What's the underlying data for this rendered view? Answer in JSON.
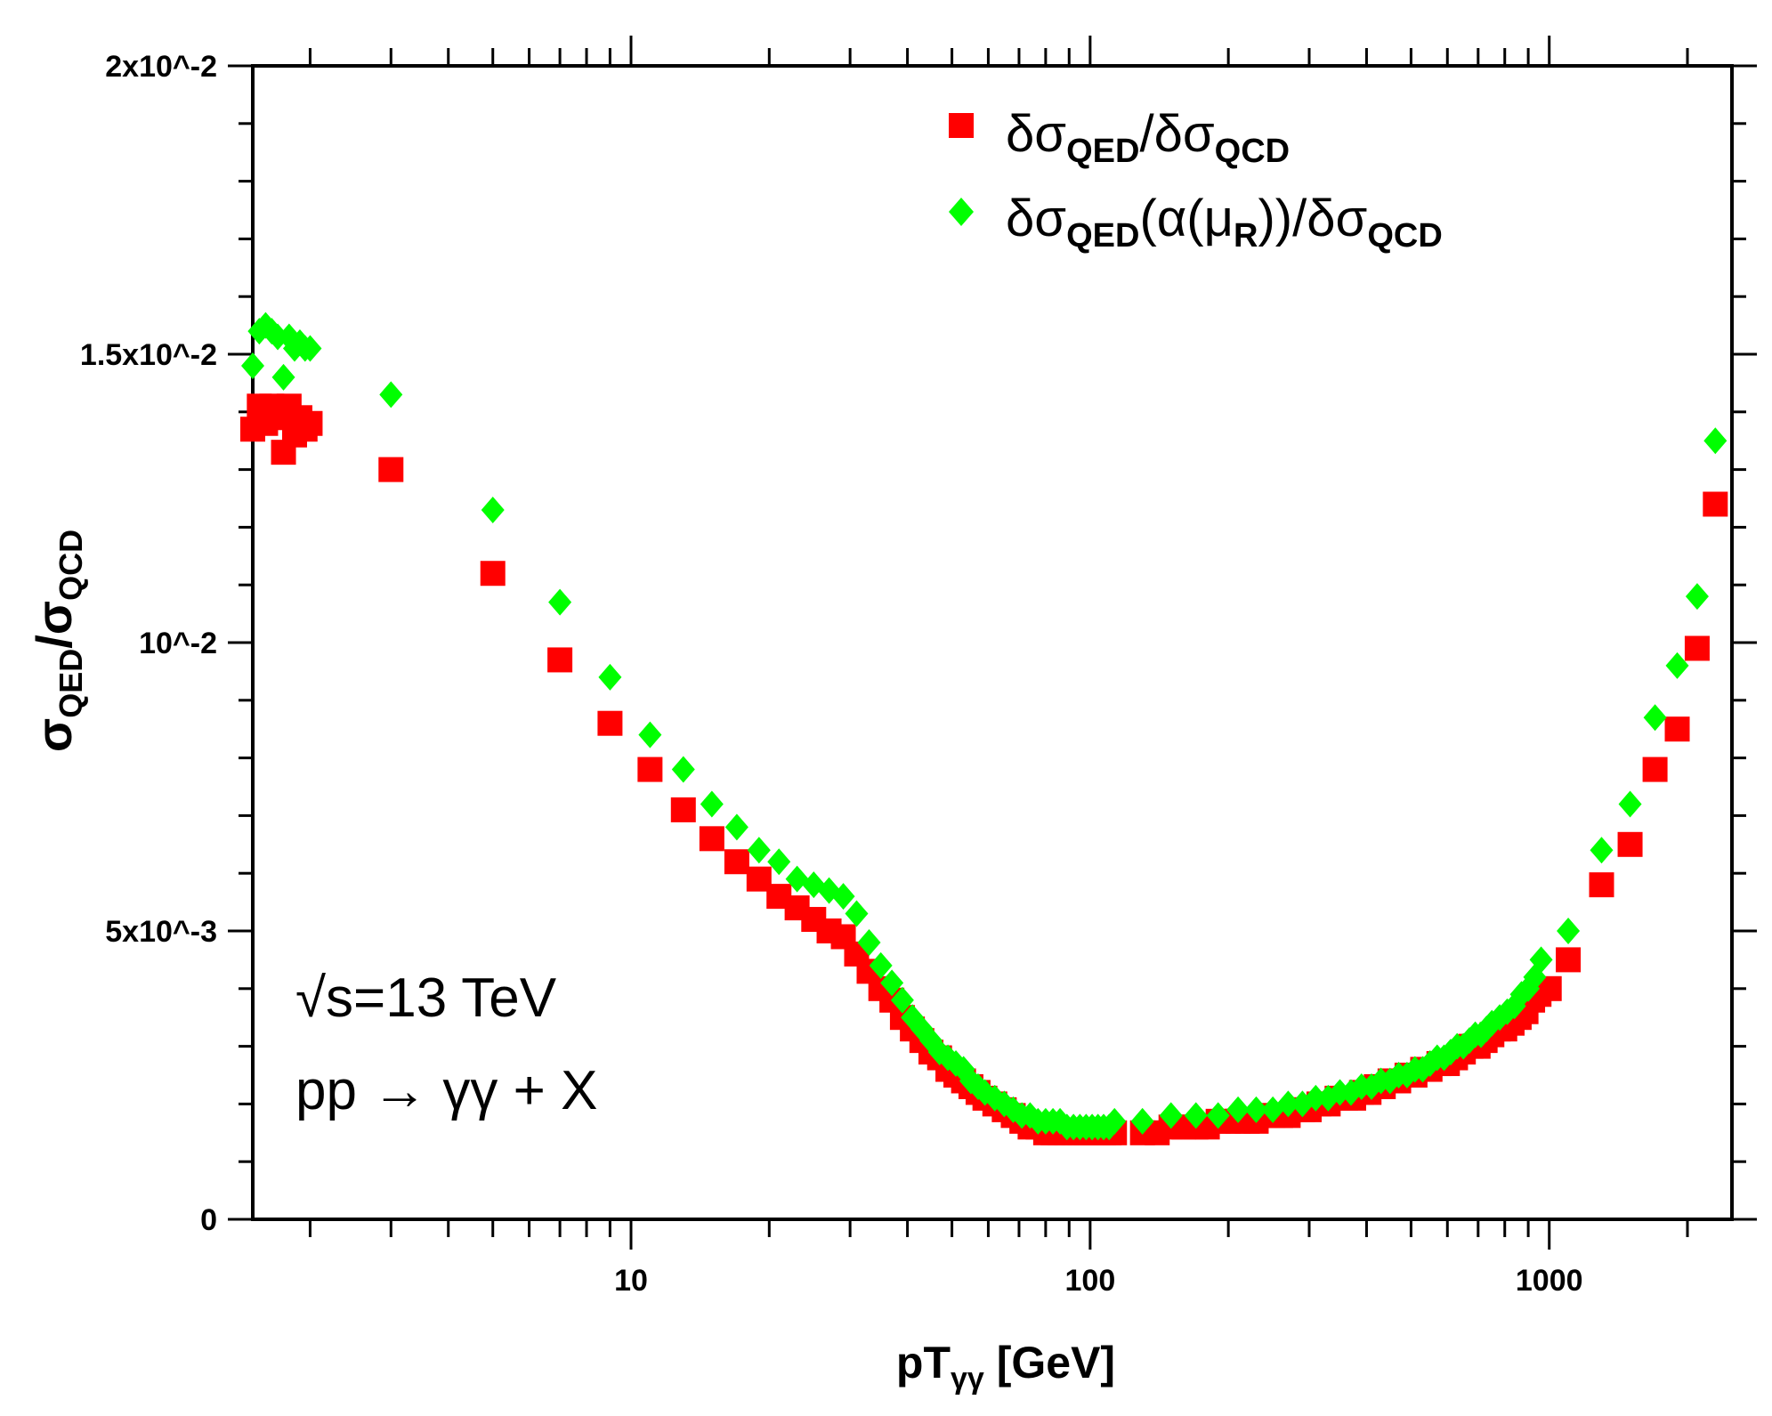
{
  "chart_data": {
    "type": "scatter",
    "xscale": "log",
    "xlim": [
      1.5,
      2500
    ],
    "ylim": [
      0,
      0.02
    ],
    "xlabel": {
      "main": "pT",
      "sub": "γγ",
      "unit": " [GeV]"
    },
    "ylabel": {
      "num": "σ",
      "num_sub": "QED",
      "sep": "/",
      "den": "σ",
      "den_sub": "QCD"
    },
    "xticks": [
      {
        "value": 10,
        "label": "10"
      },
      {
        "value": 100,
        "label": "100"
      },
      {
        "value": 1000,
        "label": "1000"
      }
    ],
    "yticks": [
      {
        "value": 0,
        "label": "0"
      },
      {
        "value": 0.005,
        "label": "5x10^-3"
      },
      {
        "value": 0.01,
        "label": "10^-2"
      },
      {
        "value": 0.015,
        "label": "1.5x10^-2"
      },
      {
        "value": 0.02,
        "label": "2x10^-2"
      }
    ],
    "annotations": [
      "√s=13 TeV",
      "pp → γγ + X"
    ],
    "series": [
      {
        "name": "δσ_QED/δσ_QCD",
        "legend": {
          "a": "δσ",
          "a_sub": "QED",
          "b": "/δσ",
          "b_sub": "QCD"
        },
        "color": "#ff0000",
        "marker": "square",
        "x": [
          1.5,
          1.55,
          1.6,
          1.65,
          1.7,
          1.75,
          1.8,
          1.85,
          1.9,
          1.95,
          2.0,
          3.0,
          5.0,
          7.0,
          9.0,
          11.0,
          13.0,
          15.0,
          17.0,
          19.0,
          21.0,
          23.0,
          25.0,
          27.0,
          29.0,
          31.0,
          33.0,
          35.0,
          37.0,
          39.0,
          41.0,
          43.0,
          45.0,
          47.0,
          49.0,
          51.0,
          53.0,
          55.0,
          57.0,
          59.0,
          62.0,
          65.0,
          68.0,
          71.0,
          74.0,
          77.0,
          80.0,
          83.0,
          86.0,
          89.0,
          92.0,
          95.0,
          98.0,
          101.0,
          104.0,
          107.0,
          110.0,
          113.0,
          130.0,
          140.0,
          150.0,
          160.0,
          170.0,
          180.0,
          190.0,
          200.0,
          210.0,
          220.0,
          230.0,
          240.0,
          250.0,
          260.0,
          270.0,
          280.0,
          290.0,
          300.0,
          315.0,
          330.0,
          345.0,
          360.0,
          375.0,
          390.0,
          405.0,
          420.0,
          435.0,
          450.0,
          470.0,
          490.0,
          510.0,
          530.0,
          550.0,
          575.0,
          600.0,
          625.0,
          650.0,
          675.0,
          700.0,
          725.0,
          750.0,
          775.0,
          800.0,
          830.0,
          860.0,
          890.0,
          920.0,
          950.0,
          1000.0,
          1100.0,
          1300.0,
          1500.0,
          1700.0,
          1900.0,
          2100.0,
          2300.0
        ],
        "y": [
          0.0137,
          0.0141,
          0.0138,
          0.0141,
          0.0139,
          0.0133,
          0.0141,
          0.0136,
          0.0139,
          0.0137,
          0.0138,
          0.013,
          0.0112,
          0.0097,
          0.0086,
          0.0078,
          0.0071,
          0.0066,
          0.0062,
          0.0059,
          0.0056,
          0.0054,
          0.0052,
          0.005,
          0.0049,
          0.0046,
          0.0043,
          0.004,
          0.0038,
          0.0035,
          0.0033,
          0.0031,
          0.0029,
          0.0028,
          0.0026,
          0.0025,
          0.0024,
          0.0023,
          0.0022,
          0.0021,
          0.002,
          0.0019,
          0.0018,
          0.0017,
          0.0016,
          0.0016,
          0.0015,
          0.0015,
          0.0015,
          0.0015,
          0.0015,
          0.0015,
          0.0015,
          0.0015,
          0.0015,
          0.0015,
          0.0015,
          0.0015,
          0.0015,
          0.0015,
          0.0016,
          0.0016,
          0.0016,
          0.0016,
          0.0017,
          0.0017,
          0.0017,
          0.0017,
          0.0017,
          0.0018,
          0.0018,
          0.0018,
          0.0018,
          0.0019,
          0.0019,
          0.0019,
          0.002,
          0.002,
          0.0021,
          0.0021,
          0.0021,
          0.0022,
          0.0022,
          0.0023,
          0.0023,
          0.0024,
          0.0024,
          0.0025,
          0.0025,
          0.0026,
          0.0026,
          0.0027,
          0.0027,
          0.0028,
          0.0029,
          0.003,
          0.003,
          0.0031,
          0.0032,
          0.0033,
          0.0033,
          0.0034,
          0.0035,
          0.0036,
          0.0038,
          0.0039,
          0.004,
          0.0045,
          0.0058,
          0.0065,
          0.0078,
          0.0085,
          0.0099,
          0.0124
        ]
      },
      {
        "name": "δσ_QED(α(μ_R))/δσ_QCD",
        "legend": {
          "a": "δσ",
          "a_sub": "QED",
          "mid": "(α(μ",
          "mid_sub": "R",
          "b": "))/δσ",
          "b_sub": "QCD"
        },
        "color": "#00ff00",
        "marker": "diamond",
        "x": [
          1.5,
          1.55,
          1.6,
          1.65,
          1.7,
          1.75,
          1.8,
          1.85,
          1.9,
          1.95,
          2.0,
          3.0,
          5.0,
          7.0,
          9.0,
          11.0,
          13.0,
          15.0,
          17.0,
          19.0,
          21.0,
          23.0,
          25.0,
          27.0,
          29.0,
          31.0,
          33.0,
          35.0,
          37.0,
          39.0,
          41.0,
          43.0,
          45.0,
          47.0,
          49.0,
          51.0,
          53.0,
          55.0,
          57.0,
          59.0,
          62.0,
          65.0,
          68.0,
          71.0,
          74.0,
          77.0,
          80.0,
          83.0,
          86.0,
          89.0,
          92.0,
          95.0,
          98.0,
          101.0,
          104.0,
          107.0,
          110.0,
          113.0,
          130.0,
          150.0,
          170.0,
          190.0,
          210.0,
          230.0,
          250.0,
          270.0,
          290.0,
          310.0,
          330.0,
          350.0,
          370.0,
          390.0,
          410.0,
          430.0,
          450.0,
          470.0,
          490.0,
          510.0,
          530.0,
          550.0,
          570.0,
          590.0,
          610.0,
          630.0,
          650.0,
          670.0,
          690.0,
          710.0,
          730.0,
          750.0,
          780.0,
          810.0,
          840.0,
          870.0,
          900.0,
          930.0,
          960.0,
          1100.0,
          1300.0,
          1500.0,
          1700.0,
          1900.0,
          2100.0,
          2300.0
        ],
        "y": [
          0.0148,
          0.0154,
          0.0155,
          0.0154,
          0.0153,
          0.0146,
          0.0153,
          0.0151,
          0.0152,
          0.0151,
          0.0151,
          0.0143,
          0.0123,
          0.0107,
          0.0094,
          0.0084,
          0.0078,
          0.0072,
          0.0068,
          0.0064,
          0.0062,
          0.0059,
          0.0058,
          0.0057,
          0.0056,
          0.0053,
          0.0048,
          0.0044,
          0.0041,
          0.0038,
          0.0035,
          0.0033,
          0.0031,
          0.0029,
          0.0028,
          0.0027,
          0.0026,
          0.0024,
          0.0023,
          0.0022,
          0.0021,
          0.002,
          0.0019,
          0.0018,
          0.0018,
          0.0017,
          0.0017,
          0.0017,
          0.0017,
          0.0016,
          0.0016,
          0.0016,
          0.0016,
          0.0016,
          0.0016,
          0.0016,
          0.0016,
          0.0017,
          0.0017,
          0.0018,
          0.0018,
          0.0018,
          0.0019,
          0.0019,
          0.0019,
          0.002,
          0.002,
          0.0021,
          0.0021,
          0.0022,
          0.0022,
          0.0023,
          0.0023,
          0.0024,
          0.0024,
          0.0025,
          0.0025,
          0.0026,
          0.0026,
          0.0027,
          0.0028,
          0.0028,
          0.0029,
          0.003,
          0.003,
          0.0031,
          0.0032,
          0.0032,
          0.0033,
          0.0034,
          0.0035,
          0.0036,
          0.0037,
          0.0039,
          0.004,
          0.0042,
          0.0045,
          0.005,
          0.0064,
          0.0072,
          0.0087,
          0.0096,
          0.0108,
          0.0135
        ]
      }
    ]
  }
}
